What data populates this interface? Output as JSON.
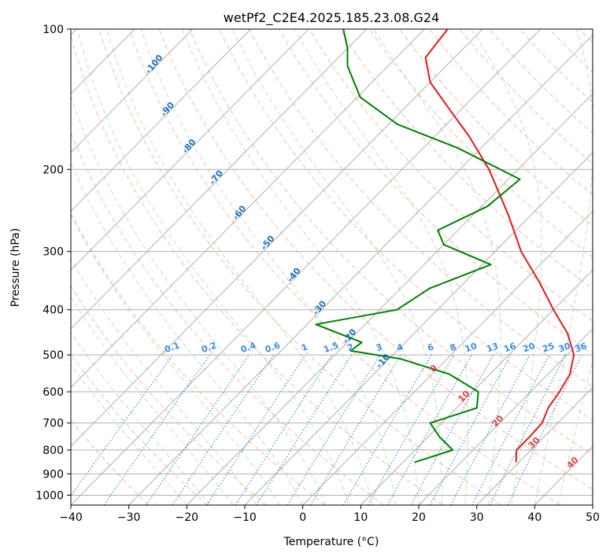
{
  "chart_data": {
    "type": "line",
    "chart_kind": "skew-t log-p diagram",
    "title": "wetPf2_C2E4.2025.185.23.08.G24",
    "xlabel": "Temperature (°C)",
    "ylabel": "Pressure (hPa)",
    "xlim": [
      -40,
      50
    ],
    "ylim": [
      1050,
      100
    ],
    "y_scale": "log",
    "grid": true,
    "x_ticks": [
      -40,
      -30,
      -20,
      -10,
      0,
      10,
      20,
      30,
      40,
      50
    ],
    "y_ticks": [
      100,
      200,
      300,
      400,
      500,
      600,
      700,
      800,
      900,
      1000
    ],
    "dry_adiabat_labels": [
      "-100",
      "-90",
      "-80",
      "-70",
      "-60",
      "-50",
      "-40",
      "-30",
      "-20",
      "-10"
    ],
    "moist_adiabat_labels": [
      "0",
      "10",
      "20",
      "30",
      "40"
    ],
    "mixing_ratio_labels": [
      "0.1",
      "0.2",
      "0.4",
      "0.6",
      "1",
      "1.5",
      "2",
      "3",
      "4",
      "6",
      "8",
      "10",
      "13",
      "16",
      "20",
      "25",
      "30",
      "36"
    ],
    "colors": {
      "temperature": "#e41a1c",
      "dewpoint": "#008000",
      "grid": "#b0b0b0",
      "dry_adiabat": "#f4a582",
      "moist_adiabat": "#8fd08f",
      "mixing_ratio": "#3a8ee6",
      "dry_adiabat_label": "#1f6fb5",
      "moist_adiabat_label": "#e04040"
    },
    "series": [
      {
        "key": "temperature",
        "points": [
          {
            "p": 850,
            "t": 29.5
          },
          {
            "p": 800,
            "t": 27.5
          },
          {
            "p": 750,
            "t": 27.5
          },
          {
            "p": 700,
            "t": 27.3
          },
          {
            "p": 650,
            "t": 25.8
          },
          {
            "p": 600,
            "t": 25.0
          },
          {
            "p": 550,
            "t": 23.8
          },
          {
            "p": 500,
            "t": 21.2
          },
          {
            "p": 450,
            "t": 16.5
          },
          {
            "p": 400,
            "t": 10.0
          },
          {
            "p": 350,
            "t": 3.0
          },
          {
            "p": 300,
            "t": -5.5
          },
          {
            "p": 250,
            "t": -14.0
          },
          {
            "p": 200,
            "t": -25.0
          },
          {
            "p": 170,
            "t": -34.0
          },
          {
            "p": 150,
            "t": -41.5
          },
          {
            "p": 130,
            "t": -50.0
          },
          {
            "p": 115,
            "t": -55.0
          },
          {
            "p": 100,
            "t": -56.0
          }
        ]
      },
      {
        "key": "dewpoint",
        "points": [
          {
            "p": 850,
            "t": 12.0
          },
          {
            "p": 800,
            "t": 16.5
          },
          {
            "p": 750,
            "t": 12.0
          },
          {
            "p": 700,
            "t": 8.0
          },
          {
            "p": 650,
            "t": 13.5
          },
          {
            "p": 600,
            "t": 11.0
          },
          {
            "p": 550,
            "t": 3.0
          },
          {
            "p": 510,
            "t": -8.0
          },
          {
            "p": 490,
            "t": -18.0
          },
          {
            "p": 470,
            "t": -17.5
          },
          {
            "p": 430,
            "t": -28.5
          },
          {
            "p": 400,
            "t": -17.0
          },
          {
            "p": 360,
            "t": -15.0
          },
          {
            "p": 320,
            "t": -8.5
          },
          {
            "p": 290,
            "t": -20.0
          },
          {
            "p": 270,
            "t": -23.5
          },
          {
            "p": 240,
            "t": -19.0
          },
          {
            "p": 210,
            "t": -18.0
          },
          {
            "p": 180,
            "t": -34.0
          },
          {
            "p": 160,
            "t": -48.5
          },
          {
            "p": 140,
            "t": -59.5
          },
          {
            "p": 120,
            "t": -67.0
          },
          {
            "p": 110,
            "t": -70.0
          },
          {
            "p": 100,
            "t": -74.0
          }
        ]
      }
    ]
  }
}
